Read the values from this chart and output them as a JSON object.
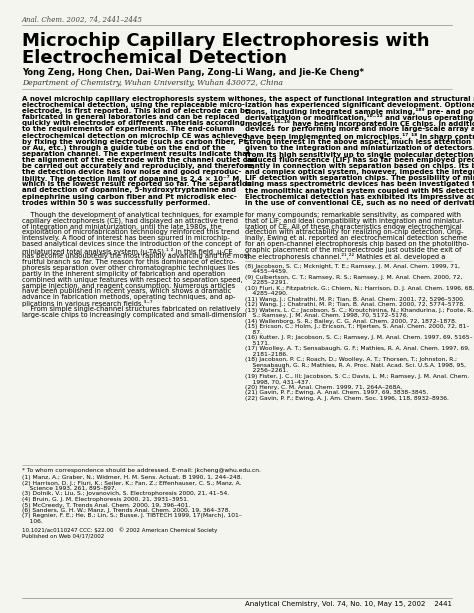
{
  "background_color": "#f5f5f0",
  "journal_line": "Anal. Chem. 2002, 74, 2441–2445",
  "title_line1": "Microchip Capillary Electrophoresis with",
  "title_line2": "Electrochemical Detection",
  "authors": "Yong Zeng, Hong Chen, Dai-Wen Pang, Zong-Li Wang, and Jie-Ke Cheng*",
  "affiliation": "Department of Chemistry, Wuhan University, Wuhan 430072, China",
  "abstract_left": [
    "A novel microchip capillary electrophoresis system with",
    "electrochemical detection, using the replaceable micro-",
    "electrode, is first reported. This kind of electrode can be",
    "fabricated in general laboratories and can be replaced",
    "quickly with electrodes of different materials according",
    "to the requirements of experiments. The end-column",
    "electrochemical detection on microchip CE was achieved",
    "by fixing the working electrode (such as carbon fiber, Pt,",
    "or Au, etc.) through a guide tube on the end of the",
    "separation channel. The experiment results indicate that",
    "the alignment of the electrode with the channel outlet can",
    "be carried out accurately and reproducibly, and therefore,",
    "the detection device has low noise and good reproduc-",
    "ibility. The detection limit of dopamine is 2.4 × 10⁻⁷ M,",
    "which is the lowest result reported so far. The separation",
    "and detection of dopamine, 5-hydroxytryptamine and",
    "epinephrine using carbon fiber and Pt microdisk elec-",
    "trodes within 50 s was successfully performed."
  ],
  "abstract_right": [
    "ones, the aspect of functional integration and structural miniatur-",
    "ization has experienced significant development. Optional func-",
    "tions, including integrated sample mixing,¹⁸⁹ pre- and postcolumn",
    "derivatization or modification,¹⁰⁻¹² and various operating separation",
    "modes,¹⁴⁻¹⁶ have been incorporated in CE chips. In addition, the",
    "devices for performing more and more large-scale array analysis",
    "have been implemented on microchips.¹⁷,¹⁸ In sharp contrast to",
    "strong interest in the above aspect, much less attention has been",
    "given to the integration and miniaturization of detectors. Benefiting",
    "from its high sensitivity up to single molecular detection,¹⁹ laser",
    "induced fluorescence (LIF) has so far been employed predomi-",
    "nantly in connection with separation based on chips. Its bulky",
    "and complex optical system, however, impedes the integration of",
    "LIF detection with separation chips. The possibility of miniatur-",
    "izing mass spectrometric devices has been investigated to achieve",
    "the monolithic analytical system coupled with MS detection.²⁰",
    "Electrochemical detection has exhibited its impressive advantages",
    "in the use of conventional CE, such as no need of derivatization"
  ],
  "body_left": [
    "    Though the development of analytical techniques, for example",
    "capillary electrophoresis (CE), had displayed an attractive trend",
    "of integration and miniaturization, until the late 1980s, the",
    "exploitation of microfabrication technology reinforced this trend",
    "intensively. A flood of interest has been spurred in microchip-",
    "based analytical devices since the introduction of the concept of",
    "miniaturized total analysis system (μ-TAS).¹,² In this field, μ-CE",
    "has become undoubtedly the most rapidly advancing and the most",
    "fruitful branch so far. The reason for this dominance of electro-",
    "phoresis separation over other chromatographic techniques lies",
    "partly in the inherent simplicity of fabrication and operation",
    "combined with unique features with respect to separation speed,",
    "sample injection, and reagent consumption. Numerous articles",
    "have been published in recent years, which shows a dramatic",
    "advance in fabrication methods, operating techniques, and ap-",
    "plications in various research fields.³⁻⁷",
    "    From simple single-channel structures fabricated on relatively",
    "large-scale chips to increasingly complicated and small-dimension"
  ],
  "body_right": [
    "for many compounds; remarkable sensitivity, as compared with",
    "that of LIF; and ideal compatibility with integration and miniatur-",
    "ization of CE. All of these characteristics endow electrochemical",
    "detection with attractability for realizing on-chip detection. Orig-",
    "inally, Ewing et al. reported an electrochemical detection scheme",
    "for an open-channel electrophoresis chip based on the photolitho-",
    "graphic placement of the microelectrode just outside the exit of",
    "the electrophoresis channel.²¹,²² Mathies et al. developed a"
  ],
  "col2_refs_before_body": [
    "(8) Jacobson, S. C.; Mcknight, T. E.; Ramsey, J. M. Anal. Chem. 1999, 71,",
    "    4455–4459.",
    "(9) Culbertson, C. T.; Ramsey, R. S.; Ramsey, J. M. Anal. Chem. 2000, 72,",
    "    2285–2291.",
    "(10) Fluri, K.; Fitzpatrick, G.; Chiem, N.; Harrison, D. J. Anal. Chem. 1996, 68,",
    "    4285–4290.",
    "(11) Wang, J.; Chatrathi, M. P.; Tian, B. Anal. Chem. 2001, 72, 5296–5300.",
    "(12) Wang, J.; Chatrathi, M. P.; Tian, B. Anal. Chem. 2000, 72, 5774–5778.",
    "(13) Waters, L. C.; Jacobson, S. C.; Kroutchinina, N.; Khandurina, J.; Foote, R.",
    "    S.; Ramsey, J. M. Anal. Chem. 1998, 70, 5172–5176.",
    "(14) Wallenborg, S. R.; Bailey, C. G. Anal. Chem. 2000, 72, 1872–1878.",
    "(15) Ericson, C.; Holm, J.; Ericson, T.; Hjerten, S. Anal. Chem. 2000, 72, 81–",
    "    87.",
    "(16) Kutter, J. P.; Jacobson, S. C.; Ramsey, J. M. Anal. Chem. 1997, 69, 5165–",
    "    5171.",
    "(17) Woolley, A. T.; Sensabaugh, G. F.; Mathies, R. A. Anal. Chem. 1997, 69,",
    "    2181–2186.",
    "(18) Jacobson, P. C.; Roach, D.; Woolley, A. T.; Thorsen, T.; Johnston, R.;",
    "    Sensabaugh, G. R.; Mathies, R. A. Proc. Natl. Acad. Sci. U.S.A. 1998, 95,",
    "    2256–2261.",
    "(19) Fister, J. C., III; Jacobson, S. C.; Davis, L. M.; Ramsey, J. M. Anal. Chem.",
    "    1998, 70, 431–437.",
    "(20) Henry, C. M. Anal. Chem. 1999, 71, 264A–268A.",
    "(21) Gavin, P. F.; Ewing, A. Anal. Chem. 1997, 69, 3838–3845.",
    "(22) Gavin, P. F.; Ewing, A. J. Am. Chem. Soc. 1996, 118, 8932–8936."
  ],
  "footnote_star": "* To whom correspondence should be addressed. E-mail: jkcheng@whu.edu.cn.",
  "references_left": [
    "(1) Manz, A.; Graber, N.; Widmer, H. M. Sens. Actuat. B 1990, 1, 244–248.",
    "(2) Harrison, D. J.; Fluri, K.; Seiler, K.; Fan, Z.; Effenhauser, C. S.; Manz, A.",
    "    Science 1993, 261, 895–897.",
    "(3) Dolnik, V.; Liu, S.; Jovanovich, S. Electrophoresis 2000, 21, 41–54.",
    "(4) Bruin, G. J. M. Electrophoresis 2000, 21, 3931–3951.",
    "(5) McCreedy, T. Trends Anal. Chem. 2000, 19, 396–401.",
    "(6) Sanders, G. H. W.; Manz, J. Trends Anal. Chem. 2000, 19, 364–378.",
    "(7) Regnier, F. E.; He, B.; Lin, S.; Busse, J. TIBTECH 1999, 17(March), 101–",
    "    106."
  ],
  "doi_line": "10.1021/ac0110247 CCC: $22.00   © 2002 American Chemical Society",
  "pub_line": "Published on Web 04/17/2002",
  "footer_right": "Analytical Chemistry, Vol. 74, No. 10, May 15, 2002    2441"
}
